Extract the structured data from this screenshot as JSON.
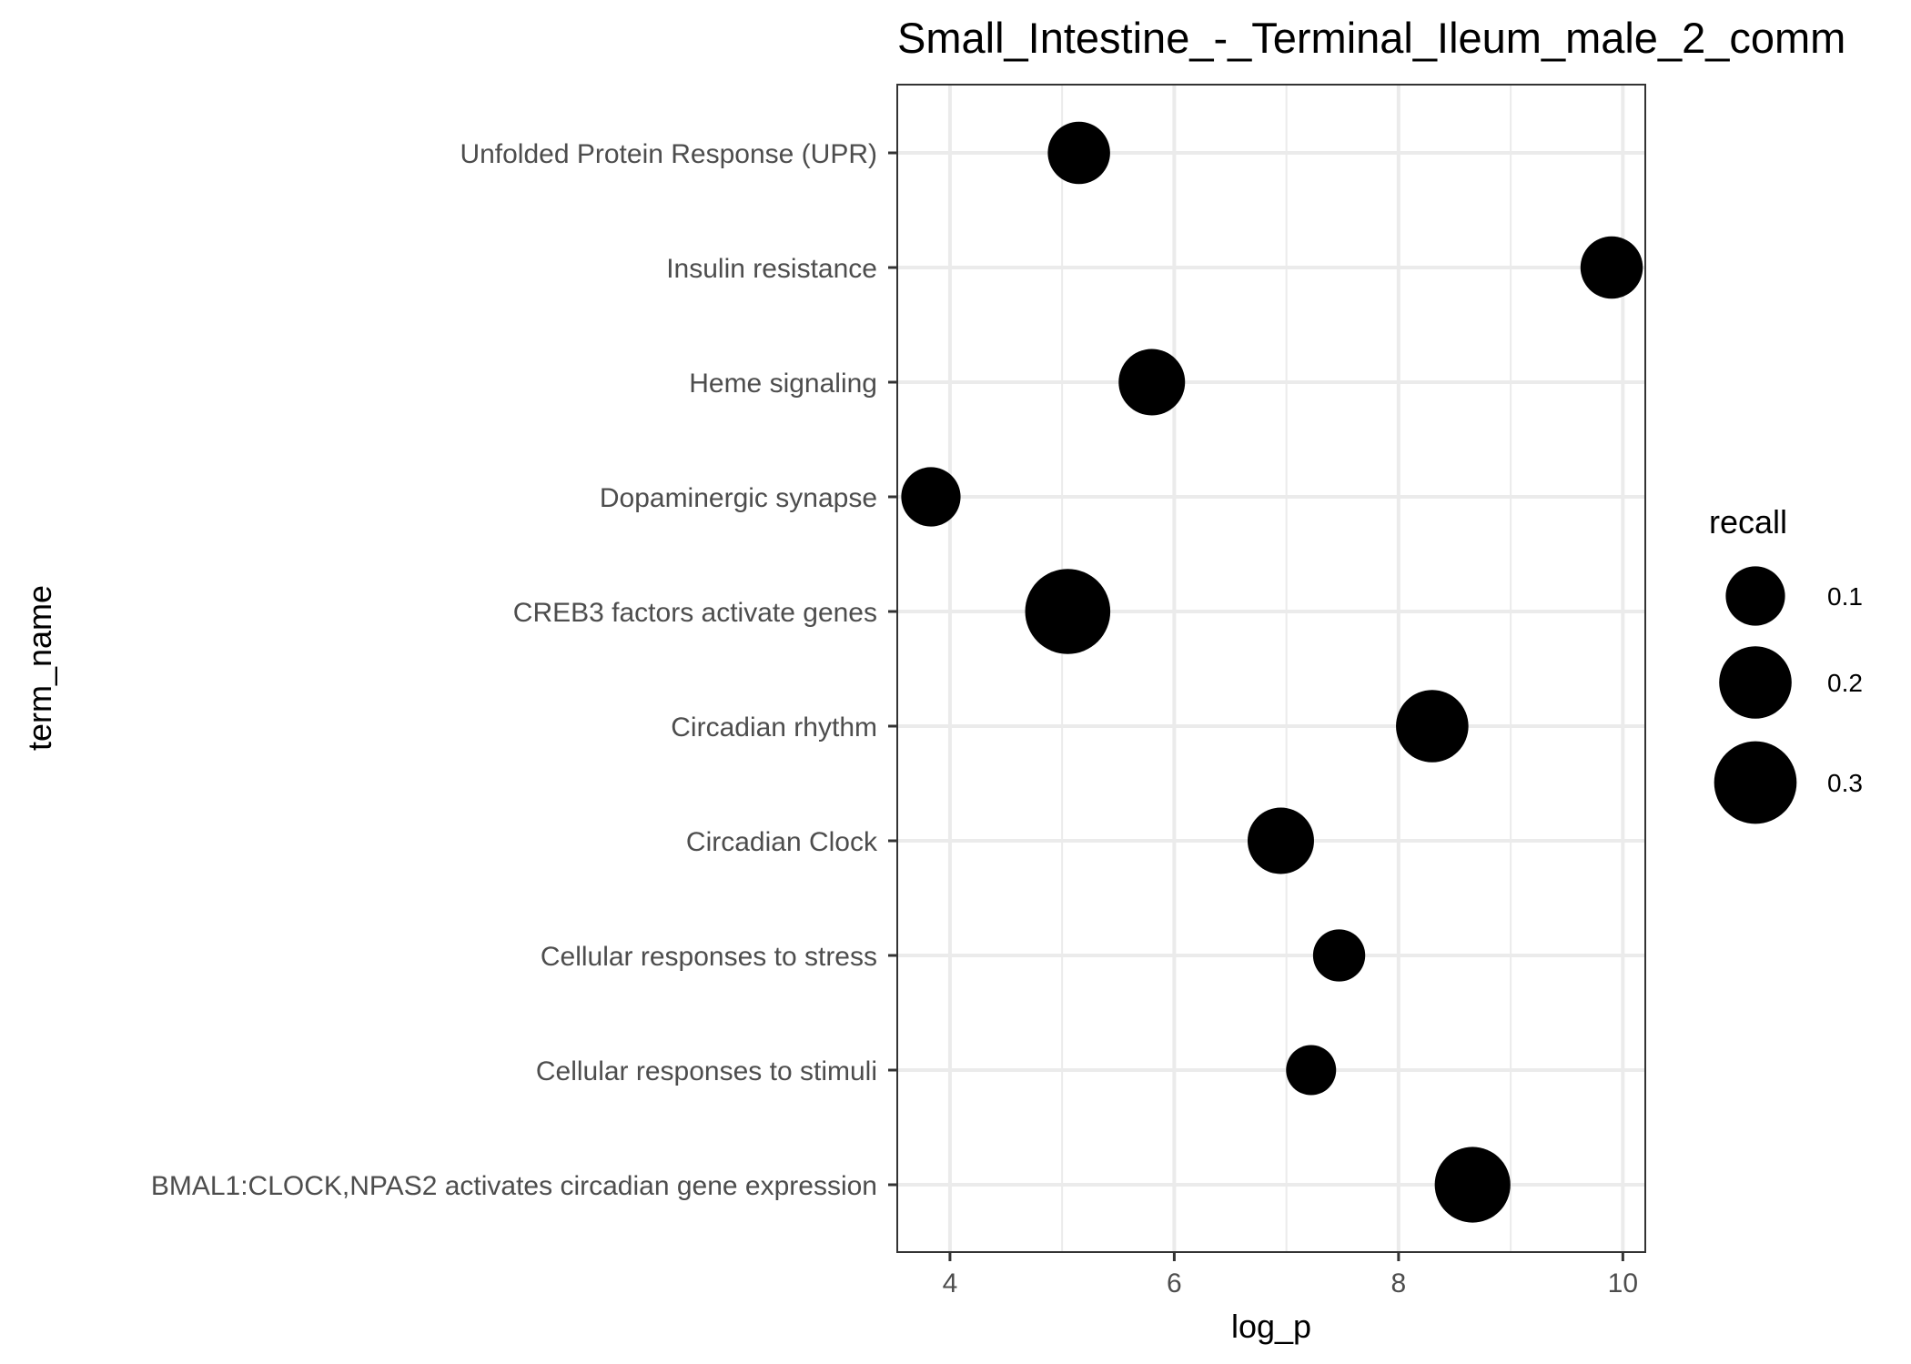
{
  "chart_data": {
    "type": "scatter",
    "title": "Small_Intestine_-_Terminal_Ileum_male_2_comm",
    "xlabel": "log_p",
    "ylabel": "term_name",
    "xlim": [
      3.53,
      10.2
    ],
    "x_ticks": [
      4,
      6,
      8,
      10
    ],
    "x_minor_ticks": [
      5,
      7,
      9
    ],
    "grid": true,
    "legend": {
      "title": "recall",
      "position": "right",
      "entries": [
        {
          "label": "0.1",
          "value": 0.1
        },
        {
          "label": "0.2",
          "value": 0.2
        },
        {
          "label": "0.3",
          "value": 0.3
        }
      ]
    },
    "categories": [
      "Unfolded Protein Response (UPR)",
      "Insulin resistance",
      "Heme signaling",
      "Dopaminergic synapse",
      "CREB3 factors activate genes",
      "Circadian rhythm",
      "Circadian Clock",
      "Cellular responses to stress",
      "Cellular responses to stimuli",
      "BMAL1:CLOCK,NPAS2 activates circadian gene expression"
    ],
    "points": [
      {
        "term": "Unfolded Protein Response (UPR)",
        "log_p": 5.15,
        "recall": 0.12
      },
      {
        "term": "Insulin resistance",
        "log_p": 9.9,
        "recall": 0.12
      },
      {
        "term": "Heme signaling",
        "log_p": 5.8,
        "recall": 0.15
      },
      {
        "term": "Dopaminergic synapse",
        "log_p": 3.83,
        "recall": 0.1
      },
      {
        "term": "CREB3 factors activate genes",
        "log_p": 5.05,
        "recall": 0.33
      },
      {
        "term": "Circadian rhythm",
        "log_p": 8.3,
        "recall": 0.2
      },
      {
        "term": "Circadian Clock",
        "log_p": 6.95,
        "recall": 0.15
      },
      {
        "term": "Cellular responses to stress",
        "log_p": 7.47,
        "recall": 0.06
      },
      {
        "term": "Cellular responses to stimuli",
        "log_p": 7.22,
        "recall": 0.05
      },
      {
        "term": "BMAL1:CLOCK,NPAS2 activates circadian gene expression",
        "log_p": 8.66,
        "recall": 0.23
      }
    ]
  }
}
